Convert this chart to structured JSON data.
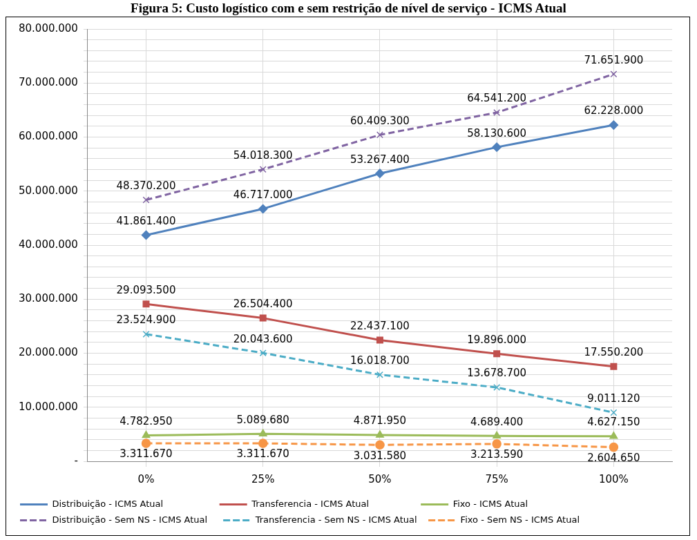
{
  "chart_data": {
    "type": "line",
    "title": "Figura 5: Custo logístico com e sem restrição de nível de serviço - ICMS Atual",
    "categories": [
      "0%",
      "25%",
      "50%",
      "75%",
      "100%"
    ],
    "series": [
      {
        "name": "Distribuição - ICMS Atual",
        "color": "#4f81bd",
        "marker": "diamond",
        "line_style": "solid",
        "values": [
          41861400,
          46717000,
          53267400,
          58130600,
          62228000
        ],
        "value_labels": [
          "41.861.400",
          "46.717.000",
          "53.267.400",
          "58.130.600",
          "62.228.000"
        ]
      },
      {
        "name": "Transferencia - ICMS Atual",
        "color": "#c0504d",
        "marker": "square",
        "line_style": "solid",
        "values": [
          29093500,
          26504400,
          22437100,
          19896000,
          17550200
        ],
        "value_labels": [
          "29.093.500",
          "26.504.400",
          "22.437.100",
          "19.896.000",
          "17.550.200"
        ]
      },
      {
        "name": "Fixo - ICMS Atual",
        "color": "#9bbb59",
        "marker": "triangle",
        "line_style": "solid",
        "values": [
          4782950,
          5089680,
          4871950,
          4689400,
          4627150
        ],
        "value_labels": [
          "4.782.950",
          "5.089.680",
          "4.871.950",
          "4.689.400",
          "4.627.150"
        ]
      },
      {
        "name": "Distribuição - Sem NS - ICMS Atual",
        "color": "#8064a2",
        "marker": "cross",
        "line_style": "dashed",
        "values": [
          48370200,
          54018300,
          60409300,
          64541200,
          71651900
        ],
        "value_labels": [
          "48.370.200",
          "54.018.300",
          "60.409.300",
          "64.541.200",
          "71.651.900"
        ]
      },
      {
        "name": "Transferencia - Sem NS - ICMS Atual",
        "color": "#4bacc6",
        "marker": "cross",
        "line_style": "dashed",
        "values": [
          23524900,
          20043600,
          16018700,
          13678700,
          9011120
        ],
        "value_labels": [
          "23.524.900",
          "20.043.600",
          "16.018.700",
          "13.678.700",
          "9.011.120"
        ]
      },
      {
        "name": "Fixo - Sem NS - ICMS Atual",
        "color": "#f79646",
        "marker": "circle",
        "line_style": "dashed",
        "values": [
          3311670,
          3311670,
          3031580,
          3213590,
          2604650
        ],
        "value_labels": [
          "3.311.670",
          "3.311.670",
          "3.031.580",
          "3.213.590",
          "2.604.650"
        ]
      }
    ],
    "ylim": [
      0,
      80000000
    ],
    "yticks": [
      {
        "value": 0,
        "label": "-"
      },
      {
        "value": 2000000,
        "label": null
      },
      {
        "value": 4000000,
        "label": null
      },
      {
        "value": 6000000,
        "label": null
      },
      {
        "value": 8000000,
        "label": null
      },
      {
        "value": 10000000,
        "label": "10.000.000"
      },
      {
        "value": 12000000,
        "label": null
      },
      {
        "value": 14000000,
        "label": null
      },
      {
        "value": 16000000,
        "label": null
      },
      {
        "value": 18000000,
        "label": null
      },
      {
        "value": 20000000,
        "label": "20.000.000"
      },
      {
        "value": 22000000,
        "label": null
      },
      {
        "value": 24000000,
        "label": null
      },
      {
        "value": 26000000,
        "label": null
      },
      {
        "value": 28000000,
        "label": null
      },
      {
        "value": 30000000,
        "label": "30.000.000"
      },
      {
        "value": 32000000,
        "label": null
      },
      {
        "value": 34000000,
        "label": null
      },
      {
        "value": 36000000,
        "label": null
      },
      {
        "value": 38000000,
        "label": null
      },
      {
        "value": 40000000,
        "label": "40.000.000"
      },
      {
        "value": 42000000,
        "label": null
      },
      {
        "value": 44000000,
        "label": null
      },
      {
        "value": 46000000,
        "label": null
      },
      {
        "value": 48000000,
        "label": null
      },
      {
        "value": 50000000,
        "label": "50.000.000"
      },
      {
        "value": 52000000,
        "label": null
      },
      {
        "value": 54000000,
        "label": null
      },
      {
        "value": 56000000,
        "label": null
      },
      {
        "value": 58000000,
        "label": null
      },
      {
        "value": 60000000,
        "label": "60.000.000"
      },
      {
        "value": 62000000,
        "label": null
      },
      {
        "value": 64000000,
        "label": null
      },
      {
        "value": 66000000,
        "label": null
      },
      {
        "value": 68000000,
        "label": null
      },
      {
        "value": 70000000,
        "label": "70.000.000"
      },
      {
        "value": 72000000,
        "label": null
      },
      {
        "value": 74000000,
        "label": null
      },
      {
        "value": 76000000,
        "label": null
      },
      {
        "value": 78000000,
        "label": null
      },
      {
        "value": 80000000,
        "label": "80.000.000"
      }
    ],
    "grid": true,
    "legend": "bottom"
  }
}
